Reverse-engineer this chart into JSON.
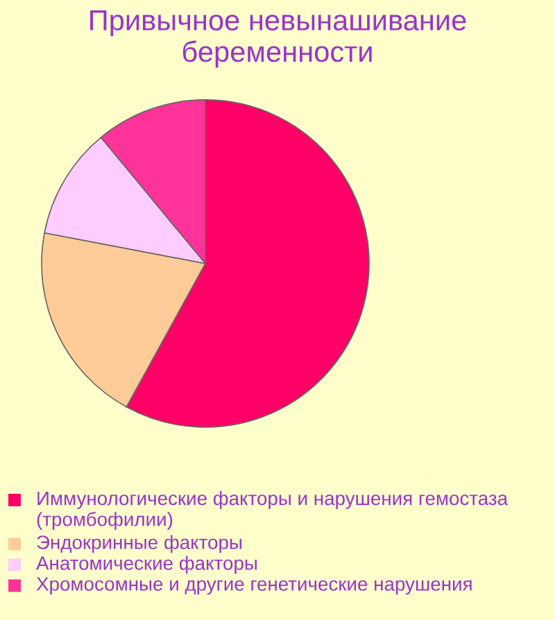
{
  "chart_data": {
    "type": "pie",
    "title": "Привычное невынашивание беременности",
    "categories": [
      "Иммунологические факторы и нарушения гемостаза (тромбофилии)",
      "Эндокринные факторы",
      "Анатомические факторы",
      "Хромосомные и другие генетические нарушения"
    ],
    "values": [
      58,
      20,
      11,
      11
    ],
    "colors": [
      "#ff0066",
      "#ffcc99",
      "#ffccff",
      "#ff3399"
    ],
    "legend": "bottom"
  }
}
